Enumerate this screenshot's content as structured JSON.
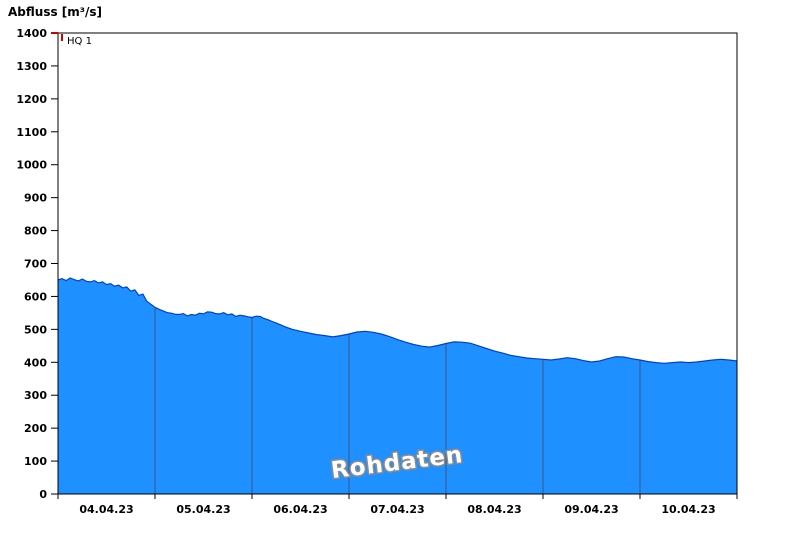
{
  "title": "Abfluss [m³/s]",
  "hq_label": "HQ 1",
  "watermark": "Rohdaten",
  "colors": {
    "fill": "#1e90ff",
    "line": "#0040cc",
    "grid": "#3d5380",
    "axis": "#000000",
    "hq": "#cc0000",
    "watermark_fill": "#ffffff",
    "watermark_stroke": "#8c8c8c"
  },
  "chart_data": {
    "type": "area",
    "title": "Abfluss [m³/s]",
    "xlabel": "",
    "ylabel": "Abfluss [m³/s]",
    "ylim": [
      0,
      1400
    ],
    "y_ticks": [
      0,
      100,
      200,
      300,
      400,
      500,
      600,
      700,
      800,
      900,
      1000,
      1100,
      1200,
      1300,
      1400
    ],
    "x_tick_labels": [
      "04.04.23",
      "05.04.23",
      "06.04.23",
      "07.04.23",
      "08.04.23",
      "09.04.23",
      "10.04.23"
    ],
    "x_range_hours": [
      0,
      168
    ],
    "day_boundaries_hours": [
      24,
      48,
      72,
      96,
      120,
      144
    ],
    "grid": "vertical-day-lines-inside-area",
    "legend": "none",
    "annotations": [
      {
        "label": "HQ 1",
        "value": 1400,
        "color": "#cc0000"
      },
      {
        "label": "Rohdaten",
        "type": "watermark"
      }
    ],
    "series": [
      {
        "name": "Abfluss Rohdaten",
        "unit": "m³/s",
        "x_hours": [
          0,
          1,
          2,
          3,
          4,
          5,
          6,
          7,
          8,
          9,
          10,
          11,
          12,
          13,
          14,
          15,
          16,
          17,
          18,
          19,
          20,
          21,
          22,
          23,
          24,
          25,
          26,
          27,
          28,
          29,
          30,
          31,
          32,
          33,
          34,
          35,
          36,
          37,
          38,
          39,
          40,
          41,
          42,
          43,
          44,
          45,
          46,
          47,
          48,
          49,
          50,
          51,
          52,
          53,
          54,
          55,
          56,
          57,
          58,
          59,
          60,
          62,
          64,
          66,
          68,
          70,
          72,
          74,
          76,
          78,
          80,
          82,
          84,
          86,
          88,
          90,
          92,
          94,
          96,
          98,
          100,
          102,
          104,
          106,
          108,
          110,
          112,
          114,
          116,
          118,
          120,
          122,
          124,
          126,
          128,
          130,
          132,
          134,
          136,
          138,
          140,
          142,
          144,
          146,
          148,
          150,
          152,
          154,
          156,
          158,
          160,
          162,
          164,
          166,
          168
        ],
        "values": [
          650,
          654,
          648,
          656,
          651,
          647,
          653,
          646,
          644,
          648,
          641,
          644,
          636,
          639,
          631,
          634,
          626,
          629,
          616,
          620,
          603,
          607,
          585,
          576,
          567,
          561,
          556,
          551,
          549,
          546,
          545,
          548,
          541,
          545,
          543,
          549,
          547,
          553,
          552,
          548,
          547,
          551,
          544,
          547,
          539,
          543,
          541,
          538,
          536,
          540,
          539,
          533,
          529,
          524,
          519,
          514,
          509,
          504,
          500,
          497,
          494,
          489,
          484,
          481,
          477,
          481,
          486,
          492,
          494,
          491,
          486,
          478,
          469,
          461,
          454,
          449,
          446,
          451,
          457,
          462,
          461,
          458,
          450,
          442,
          434,
          428,
          421,
          417,
          413,
          411,
          409,
          407,
          410,
          414,
          411,
          405,
          401,
          404,
          411,
          417,
          416,
          411,
          407,
          402,
          399,
          397,
          399,
          401,
          399,
          401,
          404,
          407,
          409,
          407,
          404
        ]
      }
    ]
  }
}
